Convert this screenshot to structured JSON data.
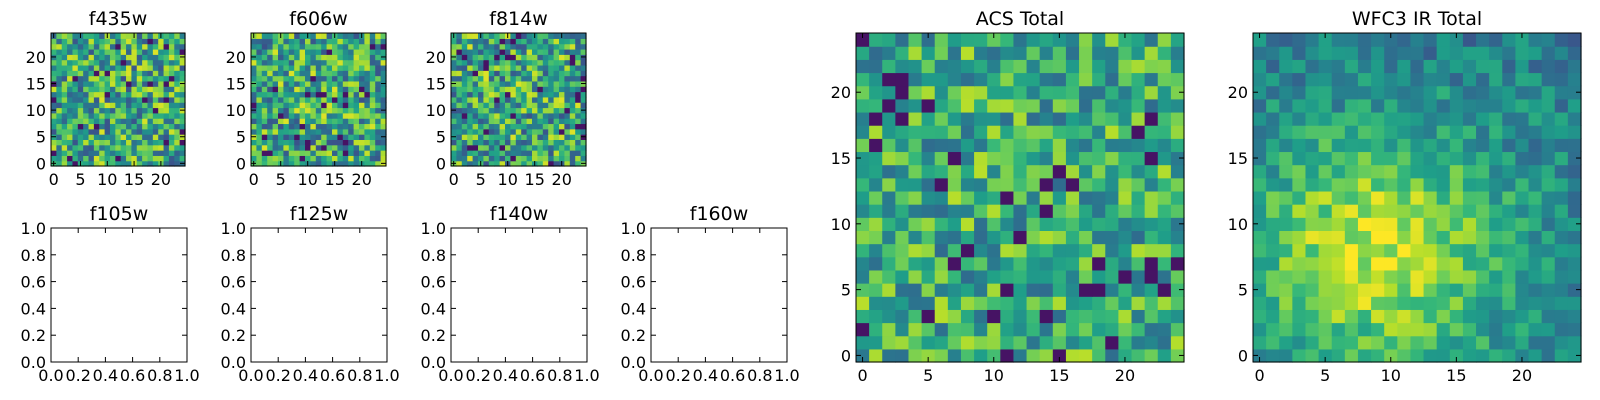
{
  "chart_data": [
    {
      "type": "heatmap",
      "title": "f435w",
      "colormap": "viridis",
      "xlim": [
        -0.5,
        24.5
      ],
      "ylim": [
        -0.5,
        24.5
      ],
      "xticks": [
        0,
        5,
        10,
        15,
        20
      ],
      "yticks": [
        0,
        5,
        10,
        15,
        20
      ],
      "grid_size": [
        25,
        25
      ]
    },
    {
      "type": "heatmap",
      "title": "f606w",
      "colormap": "viridis",
      "xlim": [
        -0.5,
        24.5
      ],
      "ylim": [
        -0.5,
        24.5
      ],
      "xticks": [
        0,
        5,
        10,
        15,
        20
      ],
      "yticks": [
        0,
        5,
        10,
        15,
        20
      ],
      "grid_size": [
        25,
        25
      ]
    },
    {
      "type": "heatmap",
      "title": "f814w",
      "colormap": "viridis",
      "xlim": [
        -0.5,
        24.5
      ],
      "ylim": [
        -0.5,
        24.5
      ],
      "xticks": [
        0,
        5,
        10,
        15,
        20
      ],
      "yticks": [
        0,
        5,
        10,
        15,
        20
      ],
      "grid_size": [
        25,
        25
      ]
    },
    {
      "type": "scatter",
      "title": "f105w",
      "xlim": [
        0,
        1
      ],
      "ylim": [
        0,
        1
      ],
      "xticks": [
        "0.0",
        "0.2",
        "0.4",
        "0.6",
        "0.8",
        "1.0"
      ],
      "yticks": [
        "0.0",
        "0.2",
        "0.4",
        "0.6",
        "0.8",
        "1.0"
      ],
      "series": []
    },
    {
      "type": "scatter",
      "title": "f125w",
      "xlim": [
        0,
        1
      ],
      "ylim": [
        0,
        1
      ],
      "xticks": [
        "0.0",
        "0.2",
        "0.4",
        "0.6",
        "0.8",
        "1.0"
      ],
      "yticks": [
        "0.0",
        "0.2",
        "0.4",
        "0.6",
        "0.8",
        "1.0"
      ],
      "series": []
    },
    {
      "type": "scatter",
      "title": "f140w",
      "xlim": [
        0,
        1
      ],
      "ylim": [
        0,
        1
      ],
      "xticks": [
        "0.0",
        "0.2",
        "0.4",
        "0.6",
        "0.8",
        "1.0"
      ],
      "yticks": [
        "0.0",
        "0.2",
        "0.4",
        "0.6",
        "0.8",
        "1.0"
      ],
      "series": []
    },
    {
      "type": "scatter",
      "title": "f160w",
      "xlim": [
        0,
        1
      ],
      "ylim": [
        0,
        1
      ],
      "xticks": [
        "0.0",
        "0.2",
        "0.4",
        "0.6",
        "0.8",
        "1.0"
      ],
      "yticks": [
        "0.0",
        "0.2",
        "0.4",
        "0.6",
        "0.8",
        "1.0"
      ],
      "series": []
    },
    {
      "type": "heatmap",
      "title": "ACS Total",
      "colormap": "viridis",
      "xlim": [
        -0.5,
        24.5
      ],
      "ylim": [
        -0.5,
        24.5
      ],
      "xticks": [
        0,
        5,
        10,
        15,
        20
      ],
      "yticks": [
        0,
        5,
        10,
        15,
        20
      ],
      "grid_size": [
        25,
        25
      ]
    },
    {
      "type": "heatmap",
      "title": "WFC3 IR Total",
      "colormap": "viridis",
      "xlim": [
        -0.5,
        24.5
      ],
      "ylim": [
        -0.5,
        24.5
      ],
      "xticks": [
        0,
        5,
        10,
        15,
        20
      ],
      "yticks": [
        0,
        5,
        10,
        15,
        20
      ],
      "grid_size": [
        25,
        25
      ]
    }
  ]
}
